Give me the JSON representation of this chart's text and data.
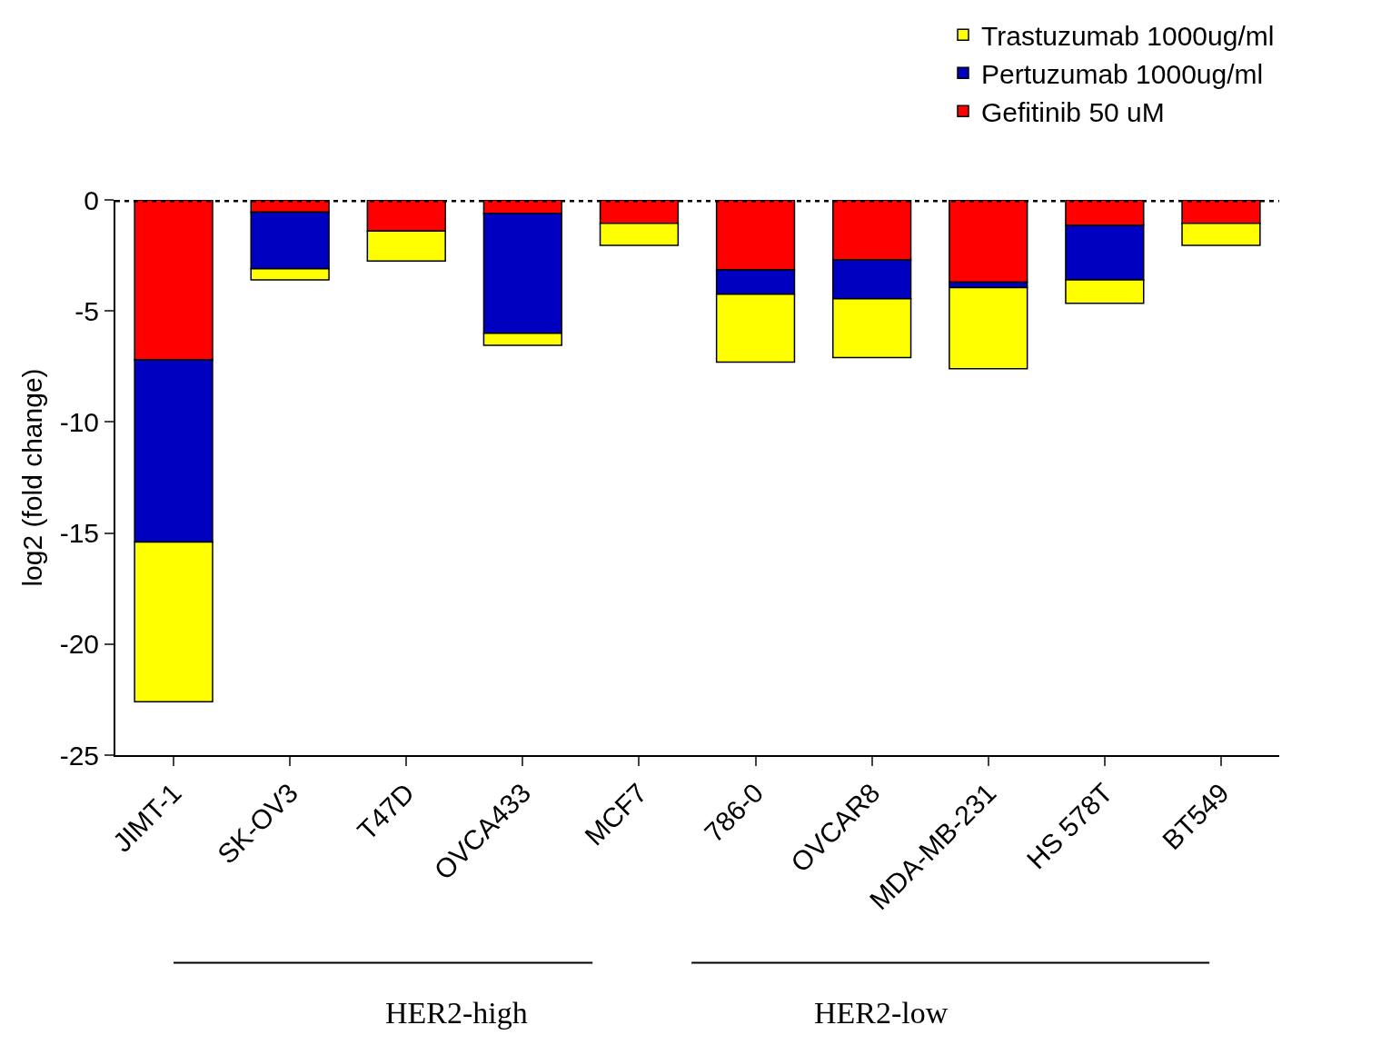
{
  "chart_data": {
    "type": "bar",
    "stacked": true,
    "ylabel": "log2 (fold change)",
    "categories": [
      "JIMT-1",
      "SK-OV3",
      "T47D",
      "OVCA433",
      "MCF7",
      "786-0",
      "OVCAR8",
      "MDA-MB-231",
      "HS 578T",
      "BT549"
    ],
    "series": [
      {
        "name": "Gefitinib 50 uM",
        "color": "#ff0000",
        "values": [
          -7.2,
          -0.55,
          -1.4,
          -0.6,
          -1.05,
          -3.15,
          -2.7,
          -3.7,
          -1.15,
          -1.05
        ]
      },
      {
        "name": "Pertuzumab 1000ug/ml",
        "color": "#0000c0",
        "values": [
          -8.2,
          -2.55,
          null,
          -5.4,
          null,
          -1.1,
          -1.75,
          -0.25,
          -2.45,
          null
        ]
      },
      {
        "name": "Trastuzumab 1000ug/ml",
        "color": "#ffff00",
        "values": [
          -7.2,
          -0.5,
          -1.35,
          -0.55,
          -1.0,
          -3.05,
          -2.65,
          -3.65,
          -1.05,
          -1.0
        ]
      }
    ],
    "ylim": [
      -25,
      0
    ],
    "yticks": [
      0,
      -5,
      -10,
      -15,
      -20,
      -25
    ],
    "ref_lines": [
      {
        "axis": "y",
        "value": 0,
        "line_style": "dotted",
        "color": "#000000"
      }
    ],
    "annotations": [
      "HER2-high",
      "HER2-low"
    ],
    "legend": "top right"
  }
}
